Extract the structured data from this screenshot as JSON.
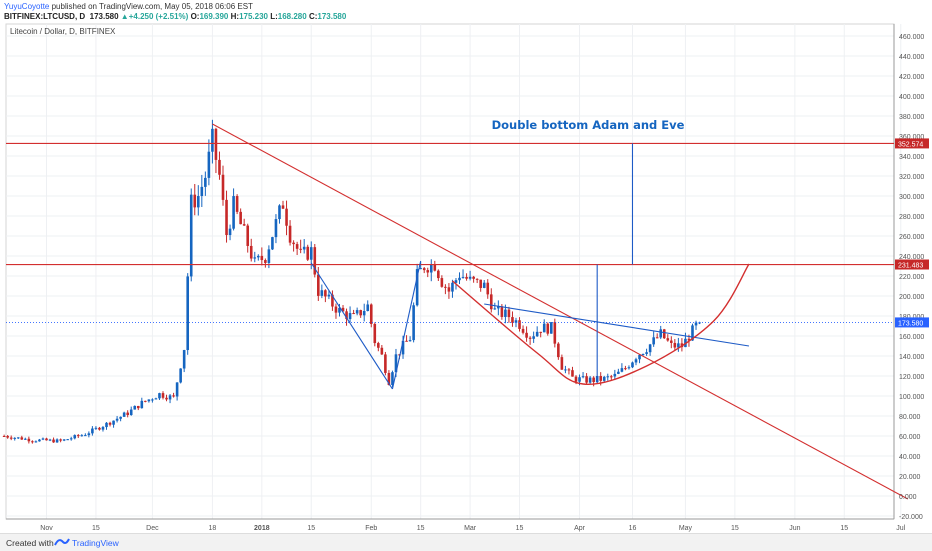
{
  "header": {
    "author": "YuyuCoyotte",
    "published": "published on TradingView.com, May 05, 2018 06:06 EST",
    "symbol": "BITFINEX:LTCUSD, D",
    "close_head": "173.580",
    "change_arrow": "▲",
    "change": "+4.250 (+2.51%)",
    "o_label": "O:",
    "o_val": "169.390",
    "h_label": "H:",
    "h_val": "175.230",
    "l_label": "L:",
    "l_val": "168.280",
    "c_label": "C:",
    "c_val": "173.580"
  },
  "footer": {
    "created_with": "Created with",
    "brand": "TradingView"
  },
  "colors": {
    "up": "#1565c0",
    "down": "#c62828",
    "trendline_red": "#d32f2f",
    "trendline_blue": "#1e5bc6",
    "annotation": "#1565c0",
    "price_tag_current": "#2962ff",
    "price_tag_level": "#c62828",
    "grid": "#eef0f3"
  },
  "chart_data": {
    "type": "candlestick",
    "symbol_label": "Litecoin / Dollar, D, BITFINEX",
    "annotation": "Double bottom Adam and Eve",
    "ylim": [
      -30,
      470
    ],
    "y_ticks": [
      "-20.000",
      "0.000",
      "20.000",
      "40.000",
      "60.000",
      "80.000",
      "100.000",
      "120.000",
      "140.000",
      "160.000",
      "180.000",
      "200.000",
      "220.000",
      "240.000",
      "260.000",
      "280.000",
      "300.000",
      "320.000",
      "340.000",
      "360.000",
      "380.000",
      "400.000",
      "420.000",
      "440.000",
      "460.000"
    ],
    "x_ticks": [
      {
        "label": "Nov",
        "date": "2017-11-01"
      },
      {
        "label": "15",
        "date": "2017-11-15"
      },
      {
        "label": "Dec",
        "date": "2017-12-01"
      },
      {
        "label": "18",
        "date": "2017-12-18"
      },
      {
        "label": "2018",
        "date": "2018-01-01"
      },
      {
        "label": "15",
        "date": "2018-01-15"
      },
      {
        "label": "Feb",
        "date": "2018-02-01"
      },
      {
        "label": "15",
        "date": "2018-02-15"
      },
      {
        "label": "Mar",
        "date": "2018-03-01"
      },
      {
        "label": "15",
        "date": "2018-03-15"
      },
      {
        "label": "Apr",
        "date": "2018-04-01"
      },
      {
        "label": "16",
        "date": "2018-04-16"
      },
      {
        "label": "May",
        "date": "2018-05-01"
      },
      {
        "label": "15",
        "date": "2018-05-15"
      },
      {
        "label": "Jun",
        "date": "2018-06-01"
      },
      {
        "label": "15",
        "date": "2018-06-15"
      },
      {
        "label": "Jul",
        "date": "2018-07-01"
      }
    ],
    "price_labels": [
      {
        "text": "352.574",
        "value": 352.574,
        "kind": "level"
      },
      {
        "text": "231.483",
        "value": 231.483,
        "kind": "level"
      },
      {
        "text": "173.580",
        "value": 173.58,
        "kind": "current"
      }
    ],
    "horizontal_levels": [
      352.574,
      231.483
    ],
    "current_price": 173.58,
    "close_path": [
      {
        "date": "2017-10-20",
        "close": 60
      },
      {
        "date": "2017-10-28",
        "close": 56
      },
      {
        "date": "2017-11-05",
        "close": 55
      },
      {
        "date": "2017-11-12",
        "close": 62
      },
      {
        "date": "2017-11-18",
        "close": 72
      },
      {
        "date": "2017-11-24",
        "close": 83
      },
      {
        "date": "2017-11-28",
        "close": 93
      },
      {
        "date": "2017-12-03",
        "close": 102
      },
      {
        "date": "2017-12-07",
        "close": 98
      },
      {
        "date": "2017-12-10",
        "close": 148
      },
      {
        "date": "2017-12-12",
        "close": 293
      },
      {
        "date": "2017-12-14",
        "close": 300
      },
      {
        "date": "2017-12-16",
        "close": 320
      },
      {
        "date": "2017-12-18",
        "close": 355
      },
      {
        "date": "2017-12-20",
        "close": 320
      },
      {
        "date": "2017-12-22",
        "close": 262
      },
      {
        "date": "2017-12-24",
        "close": 290
      },
      {
        "date": "2017-12-27",
        "close": 262
      },
      {
        "date": "2017-12-30",
        "close": 232
      },
      {
        "date": "2018-01-02",
        "close": 240
      },
      {
        "date": "2018-01-04",
        "close": 262
      },
      {
        "date": "2018-01-07",
        "close": 293
      },
      {
        "date": "2018-01-09",
        "close": 262
      },
      {
        "date": "2018-01-12",
        "close": 240
      },
      {
        "date": "2018-01-15",
        "close": 245
      },
      {
        "date": "2018-01-17",
        "close": 205
      },
      {
        "date": "2018-01-20",
        "close": 195
      },
      {
        "date": "2018-01-23",
        "close": 185
      },
      {
        "date": "2018-01-27",
        "close": 178
      },
      {
        "date": "2018-01-31",
        "close": 190
      },
      {
        "date": "2018-02-02",
        "close": 155
      },
      {
        "date": "2018-02-04",
        "close": 140
      },
      {
        "date": "2018-02-06",
        "close": 115
      },
      {
        "date": "2018-02-08",
        "close": 140
      },
      {
        "date": "2018-02-10",
        "close": 150
      },
      {
        "date": "2018-02-12",
        "close": 158
      },
      {
        "date": "2018-02-14",
        "close": 220
      },
      {
        "date": "2018-02-16",
        "close": 230
      },
      {
        "date": "2018-02-19",
        "close": 232
      },
      {
        "date": "2018-02-21",
        "close": 215
      },
      {
        "date": "2018-02-23",
        "close": 205
      },
      {
        "date": "2018-02-26",
        "close": 222
      },
      {
        "date": "2018-03-01",
        "close": 215
      },
      {
        "date": "2018-03-05",
        "close": 210
      },
      {
        "date": "2018-03-08",
        "close": 185
      },
      {
        "date": "2018-03-12",
        "close": 180
      },
      {
        "date": "2018-03-15",
        "close": 172
      },
      {
        "date": "2018-03-18",
        "close": 160
      },
      {
        "date": "2018-03-21",
        "close": 168
      },
      {
        "date": "2018-03-24",
        "close": 168
      },
      {
        "date": "2018-03-27",
        "close": 130
      },
      {
        "date": "2018-03-30",
        "close": 118
      },
      {
        "date": "2018-04-02",
        "close": 116
      },
      {
        "date": "2018-04-05",
        "close": 116
      },
      {
        "date": "2018-04-08",
        "close": 117
      },
      {
        "date": "2018-04-11",
        "close": 120
      },
      {
        "date": "2018-04-14",
        "close": 128
      },
      {
        "date": "2018-04-17",
        "close": 140
      },
      {
        "date": "2018-04-20",
        "close": 148
      },
      {
        "date": "2018-04-24",
        "close": 162
      },
      {
        "date": "2018-04-27",
        "close": 150
      },
      {
        "date": "2018-04-30",
        "close": 150
      },
      {
        "date": "2018-05-02",
        "close": 160
      },
      {
        "date": "2018-05-04",
        "close": 170
      },
      {
        "date": "2018-05-05",
        "close": 173.58
      }
    ],
    "trendlines": [
      {
        "name": "red-descending-trendline",
        "color": "red",
        "from": {
          "date": "2017-12-18",
          "price": 372
        },
        "to": {
          "date": "2018-07-03",
          "price": -3
        }
      },
      {
        "name": "blue-resistance-line",
        "color": "blue",
        "from": {
          "date": "2018-03-05",
          "price": 192
        },
        "to": {
          "date": "2018-05-19",
          "price": 150
        }
      },
      {
        "name": "adam-pattern-left",
        "color": "blue",
        "from": {
          "date": "2018-01-15",
          "price": 233
        },
        "to": {
          "date": "2018-02-07",
          "price": 107
        }
      },
      {
        "name": "adam-pattern-right",
        "color": "blue",
        "from": {
          "date": "2018-02-07",
          "price": 107
        },
        "to": {
          "date": "2018-02-15",
          "price": 235
        }
      },
      {
        "name": "target-marker-left",
        "color": "blue",
        "from": {
          "date": "2018-04-06",
          "price": 231.483
        },
        "to": {
          "date": "2018-04-06",
          "price": 113
        }
      },
      {
        "name": "target-marker-right",
        "color": "blue",
        "from": {
          "date": "2018-04-16",
          "price": 352.574
        },
        "to": {
          "date": "2018-04-16",
          "price": 231.483
        }
      }
    ],
    "eve_curve": [
      {
        "date": "2018-02-24",
        "price": 215
      },
      {
        "date": "2018-03-20",
        "price": 143
      },
      {
        "date": "2018-04-02",
        "price": 112
      },
      {
        "date": "2018-04-20",
        "price": 130
      },
      {
        "date": "2018-05-09",
        "price": 175
      },
      {
        "date": "2018-05-19",
        "price": 232
      }
    ]
  }
}
